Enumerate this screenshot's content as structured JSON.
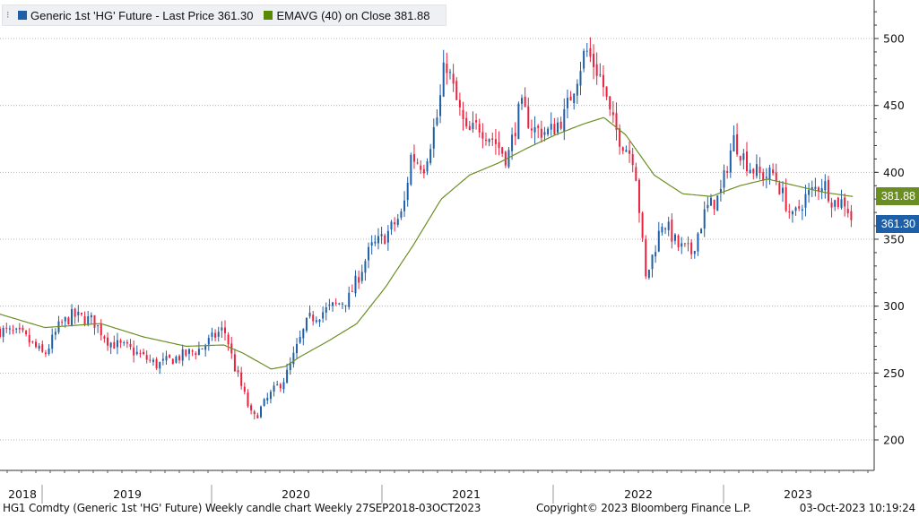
{
  "legend": {
    "grip_icon": "drag-grip-icon",
    "items": [
      {
        "label": "Generic 1st 'HG' Future - Last Price 361.30",
        "color": "#1f5fa8"
      },
      {
        "label": "EMAVG (40)  on Close 381.88",
        "color": "#5a8a00"
      }
    ]
  },
  "footer": {
    "left": "HG1 Comdty (Generic 1st 'HG' Future) Weekly candle chart  Weekly 27SEP2018-03OCT2023",
    "center": "Copyright© 2023 Bloomberg Finance L.P.",
    "right": "03-Oct-2023 10:19:24"
  },
  "price_tags": {
    "ema": {
      "label": "381.88",
      "value": 381.88,
      "color": "#6b8e23"
    },
    "last": {
      "label": "361.30",
      "value": 361.3,
      "color": "#1f5fa8"
    }
  },
  "chart_data": {
    "type": "candlestick",
    "x_label_years": [
      "2018",
      "2019",
      "2020",
      "2021",
      "2022",
      "2023"
    ],
    "y_ticks": [
      200,
      250,
      300,
      350,
      400,
      450,
      500
    ],
    "ylim": [
      180,
      525
    ],
    "date_range": [
      "2018-09-27",
      "2023-10-03"
    ],
    "colors": {
      "up": "#1f5fa8",
      "down": "#e8223f",
      "ema": "#6b8e23"
    },
    "grid": true,
    "series": [
      {
        "name": "Generic 1st 'HG' Future - Last Price",
        "last": 361.3
      },
      {
        "name": "EMAVG (40) on Close",
        "last": 381.88
      }
    ],
    "close_keypoints": [
      [
        "2018-09-27",
        282
      ],
      [
        "2018-11-15",
        278
      ],
      [
        "2018-12-31",
        263
      ],
      [
        "2019-02-01",
        285
      ],
      [
        "2019-03-01",
        293
      ],
      [
        "2019-04-15",
        289
      ],
      [
        "2019-05-20",
        273
      ],
      [
        "2019-07-01",
        268
      ],
      [
        "2019-08-30",
        256
      ],
      [
        "2019-10-15",
        262
      ],
      [
        "2019-12-01",
        268
      ],
      [
        "2020-01-15",
        282
      ],
      [
        "2020-01-25",
        280
      ],
      [
        "2020-02-10",
        257
      ],
      [
        "2020-03-23",
        215
      ],
      [
        "2020-04-30",
        234
      ],
      [
        "2020-06-01",
        247
      ],
      [
        "2020-07-01",
        274
      ],
      [
        "2020-07-20",
        290
      ],
      [
        "2020-09-01",
        298
      ],
      [
        "2020-10-15",
        306
      ],
      [
        "2020-11-30",
        343
      ],
      [
        "2020-12-31",
        352
      ],
      [
        "2021-02-08",
        370
      ],
      [
        "2021-02-25",
        412
      ],
      [
        "2021-03-25",
        405
      ],
      [
        "2021-04-25",
        445
      ],
      [
        "2021-05-10",
        485
      ],
      [
        "2021-06-01",
        455
      ],
      [
        "2021-06-25",
        428
      ],
      [
        "2021-07-20",
        435
      ],
      [
        "2021-08-20",
        425
      ],
      [
        "2021-09-20",
        410
      ],
      [
        "2021-10-18",
        450
      ],
      [
        "2021-11-15",
        432
      ],
      [
        "2021-12-20",
        430
      ],
      [
        "2022-01-20",
        442
      ],
      [
        "2022-03-07",
        492
      ],
      [
        "2022-04-10",
        470
      ],
      [
        "2022-04-30",
        440
      ],
      [
        "2022-05-20",
        425
      ],
      [
        "2022-06-20",
        410
      ],
      [
        "2022-07-14",
        320
      ],
      [
        "2022-08-20",
        365
      ],
      [
        "2022-09-20",
        345
      ],
      [
        "2022-10-20",
        340
      ],
      [
        "2022-11-20",
        372
      ],
      [
        "2022-12-20",
        382
      ],
      [
        "2023-01-18",
        425
      ],
      [
        "2023-02-20",
        405
      ],
      [
        "2023-03-20",
        397
      ],
      [
        "2023-04-15",
        399
      ],
      [
        "2023-05-25",
        365
      ],
      [
        "2023-06-20",
        381
      ],
      [
        "2023-07-30",
        393
      ],
      [
        "2023-08-20",
        378
      ],
      [
        "2023-09-15",
        378
      ],
      [
        "2023-10-03",
        361.3
      ]
    ],
    "ema_keypoints": [
      [
        "2018-09-27",
        294
      ],
      [
        "2019-01-01",
        284
      ],
      [
        "2019-05-01",
        287
      ],
      [
        "2019-08-01",
        277
      ],
      [
        "2019-11-01",
        270
      ],
      [
        "2020-01-20",
        271
      ],
      [
        "2020-03-01",
        265
      ],
      [
        "2020-05-01",
        253
      ],
      [
        "2020-06-01",
        255
      ],
      [
        "2020-07-01",
        262
      ],
      [
        "2020-09-01",
        274
      ],
      [
        "2020-11-01",
        287
      ],
      [
        "2021-01-01",
        314
      ],
      [
        "2021-03-01",
        345
      ],
      [
        "2021-05-01",
        380
      ],
      [
        "2021-07-01",
        398
      ],
      [
        "2021-09-01",
        407
      ],
      [
        "2021-11-01",
        418
      ],
      [
        "2022-01-01",
        428
      ],
      [
        "2022-03-01",
        436
      ],
      [
        "2022-04-15",
        441
      ],
      [
        "2022-06-01",
        428
      ],
      [
        "2022-08-01",
        398
      ],
      [
        "2022-10-01",
        384
      ],
      [
        "2022-12-01",
        382
      ],
      [
        "2023-02-01",
        390
      ],
      [
        "2023-04-01",
        395
      ],
      [
        "2023-06-01",
        390
      ],
      [
        "2023-08-01",
        385
      ],
      [
        "2023-10-03",
        381.88
      ]
    ]
  }
}
